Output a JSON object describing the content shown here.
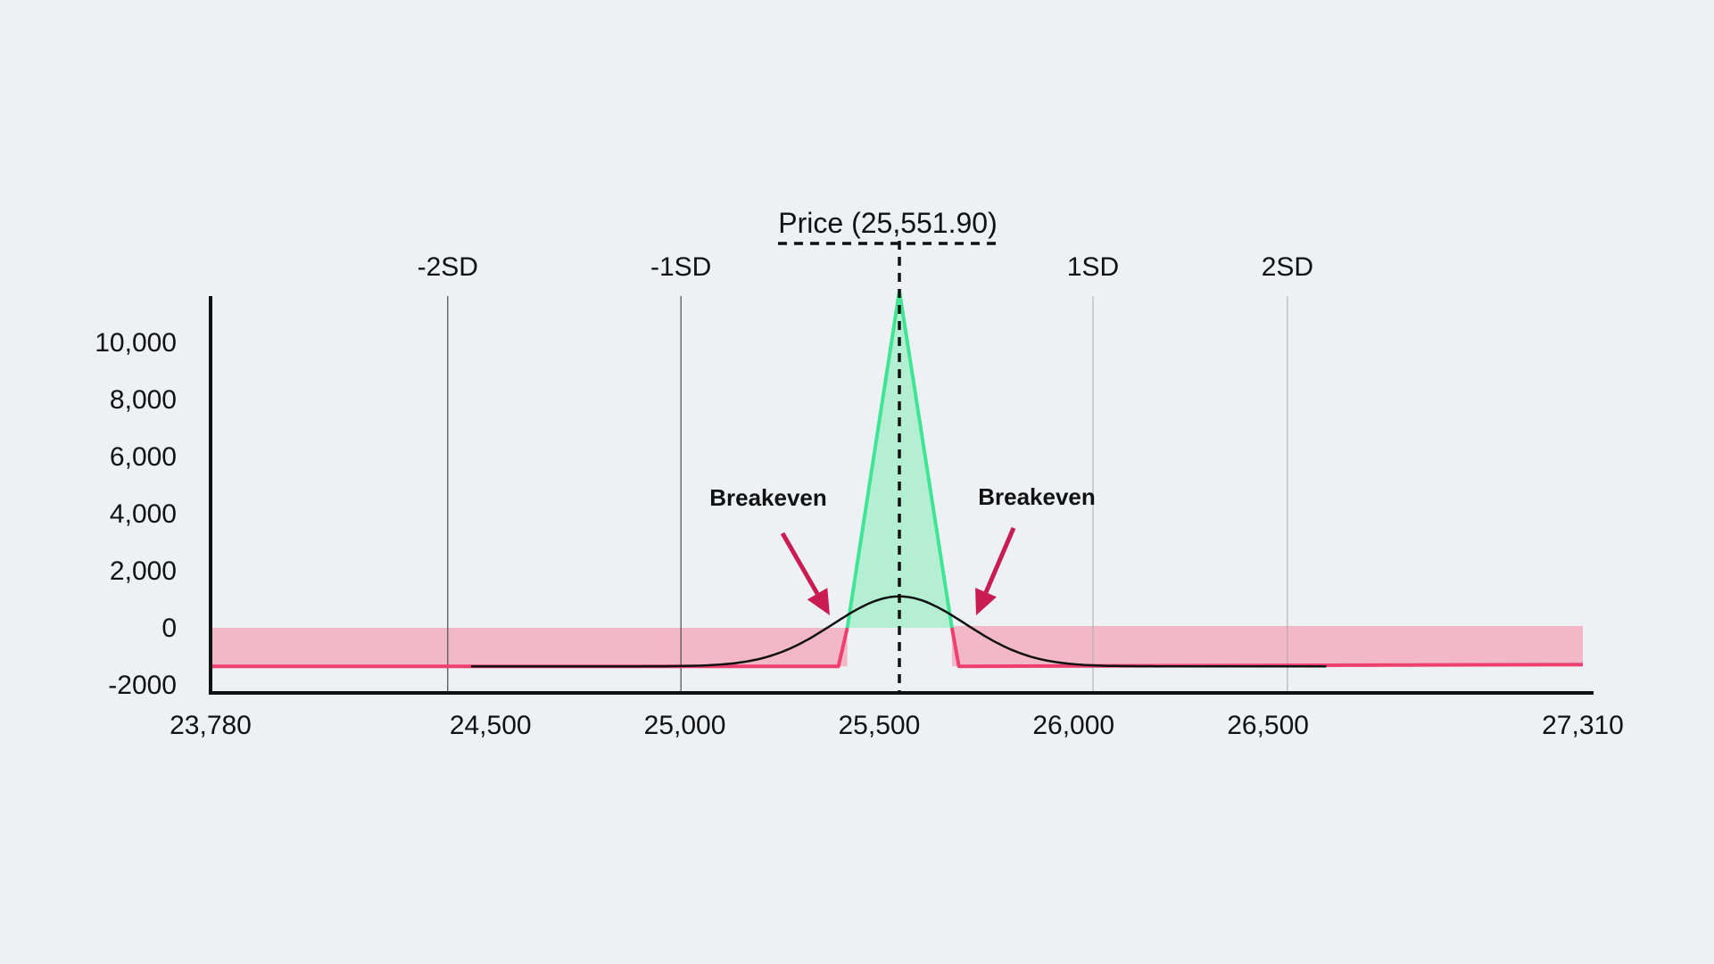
{
  "chart_data": {
    "type": "line",
    "title": "",
    "xlabel": "",
    "ylabel": "",
    "xlim": [
      23780,
      27310
    ],
    "ylim": [
      -2000,
      11000
    ],
    "x_ticks": [
      {
        "value": 23780,
        "label": "23,780"
      },
      {
        "value": 24500,
        "label": "24,500"
      },
      {
        "value": 25000,
        "label": "25,000"
      },
      {
        "value": 25500,
        "label": "25,500"
      },
      {
        "value": 26000,
        "label": "26,000"
      },
      {
        "value": 26500,
        "label": "26,500"
      },
      {
        "value": 27310,
        "label": "27,310"
      }
    ],
    "y_ticks": [
      {
        "value": 10000,
        "label": "10,000"
      },
      {
        "value": 8000,
        "label": "8,000"
      },
      {
        "value": 6000,
        "label": "6,000"
      },
      {
        "value": 4000,
        "label": "4,000"
      },
      {
        "value": 2000,
        "label": "2,000"
      },
      {
        "value": 0,
        "label": "0"
      },
      {
        "value": -2000,
        "label": "-2000"
      }
    ],
    "price": {
      "value": 25551.9,
      "label": "Price (25,551.90)"
    },
    "sd_lines": [
      {
        "label": "-2SD",
        "value": 24390
      },
      {
        "label": "-1SD",
        "value": 24990
      },
      {
        "label": "1SD",
        "value": 26050
      },
      {
        "label": "2SD",
        "value": 26550
      }
    ],
    "payoff": [
      {
        "x": 23780,
        "y": -1350
      },
      {
        "x": 25395,
        "y": -1350
      },
      {
        "x": 25551.9,
        "y": 11800
      },
      {
        "x": 25705,
        "y": -1350
      },
      {
        "x": 27310,
        "y": -1350
      }
    ],
    "breakevens": [
      {
        "label": "Breakeven",
        "value": 25418
      },
      {
        "label": "Breakeven",
        "value": 25687
      }
    ],
    "distribution_curve": {
      "mean": 25551.9,
      "x_range": [
        24450,
        26650
      ],
      "peak": 1100,
      "baseline": -1350
    },
    "profit_zone": {
      "x_range": [
        25418,
        25687
      ],
      "y_range": [
        0,
        11800
      ]
    },
    "loss_zone": {
      "y_range": [
        -1350,
        0
      ]
    },
    "colors": {
      "payoff_loss": "#ee3f6e",
      "payoff_profit": "#3fe495",
      "profit_fill": "#b4efd4",
      "loss_fill": "#f2b8c8",
      "arrow": "#c81c52",
      "curve": "#111111",
      "axis": "#111111",
      "sd_line": "#777777"
    }
  }
}
